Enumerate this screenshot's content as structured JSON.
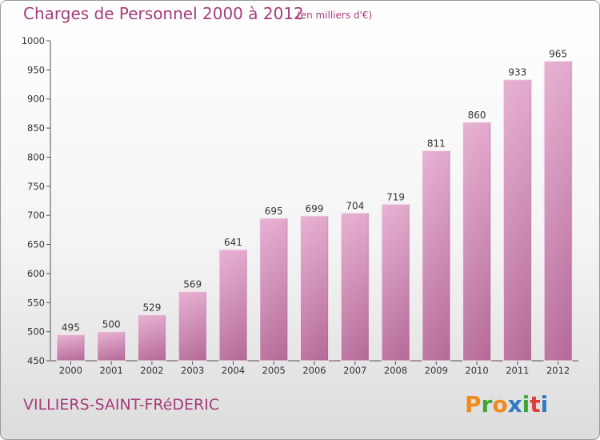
{
  "header": {
    "title": "Charges de Personnel 2000 à 2012",
    "subtitle": "(en milliers d'€)"
  },
  "footer": {
    "town": "VILLIERS-SAINT-FRéDERIC",
    "logo": "Proxiti"
  },
  "colors": {
    "accent": "#a63c78",
    "bar_top": "#e4aace",
    "bar_bottom": "#b56a98",
    "logo": [
      "#f08a1c",
      "#3fa535",
      "#f08a1c",
      "#2f7cc1",
      "#3fa535",
      "#e03a3a",
      "#2f7cc1"
    ]
  },
  "chart_data": {
    "type": "bar",
    "title": "Charges de Personnel 2000 à 2012",
    "subtitle": "(en milliers d'€)",
    "categories": [
      "2000",
      "2001",
      "2002",
      "2003",
      "2004",
      "2005",
      "2006",
      "2007",
      "2008",
      "2009",
      "2010",
      "2011",
      "2012"
    ],
    "values": [
      495,
      500,
      529,
      569,
      641,
      695,
      699,
      704,
      719,
      811,
      860,
      933,
      965
    ],
    "ylim": [
      450,
      1000
    ],
    "yticks": [
      450,
      500,
      550,
      600,
      650,
      700,
      750,
      800,
      850,
      900,
      950,
      1000
    ],
    "grid": false,
    "data_labels": true
  }
}
